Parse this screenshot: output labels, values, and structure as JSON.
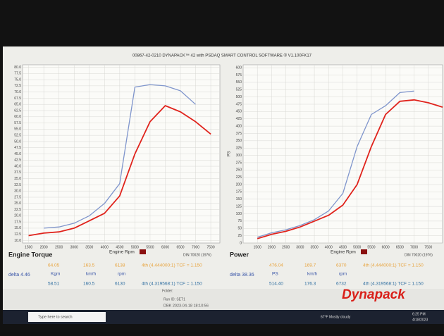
{
  "window_title": "00867-42-0210 DYNAPACK™ 42 with PSDAQ SMART CONTROL SOFTWARE ® V1.100FK17",
  "chart_data": [
    {
      "type": "line",
      "title": "Engine Torque",
      "xlabel": "Engine Rpm",
      "note": "DIN 70020 (1976)",
      "x": [
        1500,
        2000,
        2500,
        3000,
        3500,
        4000,
        4500,
        5000,
        5500,
        6000,
        6500,
        7000,
        7500
      ],
      "series": [
        {
          "color": "#7f95cc",
          "values": [
            null,
            15,
            15.5,
            17,
            20,
            25,
            33,
            72,
            73,
            72.5,
            70.5,
            65,
            null
          ]
        },
        {
          "color": "#e0231c",
          "values": [
            12,
            13,
            13.5,
            15,
            18,
            21,
            28,
            45,
            58,
            64.5,
            62,
            58,
            53
          ]
        }
      ],
      "xlim": [
        1300,
        7800
      ],
      "xticks": [
        1500,
        2000,
        2500,
        3000,
        3500,
        4000,
        4500,
        5000,
        5500,
        6000,
        6500,
        7000,
        7500
      ],
      "ylim": [
        9,
        81
      ],
      "yticks": [
        {
          "value": 10,
          "label": "10.0"
        },
        {
          "value": 12.5,
          "label": "12.5"
        },
        {
          "value": 15,
          "label": "15.0"
        },
        {
          "value": 17.5,
          "label": "17.5"
        },
        {
          "value": 20,
          "label": "20.0"
        },
        {
          "value": 22.5,
          "label": "22.5"
        },
        {
          "value": 25,
          "label": "25.0"
        },
        {
          "value": 27.5,
          "label": "27.5"
        },
        {
          "value": 30,
          "label": "30.0"
        },
        {
          "value": 32.5,
          "label": "32.5"
        },
        {
          "value": 35,
          "label": "35.0"
        },
        {
          "value": 37.5,
          "label": "37.5"
        },
        {
          "value": 40,
          "label": "40.0"
        },
        {
          "value": 42.5,
          "label": "42.5"
        },
        {
          "value": 45,
          "label": "45.0"
        },
        {
          "value": 47.5,
          "label": "47.5"
        },
        {
          "value": 50,
          "label": "50.0"
        },
        {
          "value": 52.5,
          "label": "52.5"
        },
        {
          "value": 55,
          "label": "55.0"
        },
        {
          "value": 57.5,
          "label": "57.5"
        },
        {
          "value": 60,
          "label": "60.0"
        },
        {
          "value": 62.5,
          "label": "62.5"
        },
        {
          "value": 65,
          "label": "65.0"
        },
        {
          "value": 67.5,
          "label": "67.5"
        },
        {
          "value": 70,
          "label": "70.0"
        },
        {
          "value": 72.5,
          "label": "72.5"
        },
        {
          "value": 75,
          "label": "75.0"
        },
        {
          "value": 77.5,
          "label": "77.5"
        },
        {
          "value": 80,
          "label": "80.0"
        }
      ],
      "grid": true,
      "delta": "delta 4.46",
      "units": [
        "Kgm",
        "km/h",
        "rpm"
      ],
      "run1": [
        "64.05",
        "163.5",
        "6138",
        "4th (4.444000:1) TCF = 1.150"
      ],
      "run2": [
        "58.51",
        "160.5",
        "6130",
        "4th (4.319568:1) TCF = 1.150"
      ]
    },
    {
      "type": "line",
      "title": "Power",
      "xlabel": "Engine Rpm",
      "ylabel": "PS",
      "note": "DIN 70020 (1976)",
      "x": [
        1000,
        1500,
        2000,
        2500,
        3000,
        3500,
        4000,
        4500,
        5000,
        5500,
        6000,
        6500,
        7000,
        7500,
        8000
      ],
      "series": [
        {
          "color": "#7f95cc",
          "values": [
            null,
            20,
            35,
            45,
            60,
            80,
            110,
            170,
            330,
            440,
            470,
            515,
            520,
            null,
            null
          ]
        },
        {
          "color": "#e0231c",
          "values": [
            null,
            15,
            30,
            40,
            55,
            75,
            95,
            130,
            200,
            330,
            440,
            485,
            490,
            480,
            465
          ]
        }
      ],
      "xlim": [
        1000,
        8000
      ],
      "xticks": [
        1500,
        2000,
        2500,
        3000,
        3500,
        4000,
        4500,
        5000,
        5500,
        6000,
        6500,
        7000,
        7500
      ],
      "ylim": [
        0,
        610
      ],
      "yticks": [
        0,
        25,
        50,
        75,
        100,
        125,
        150,
        175,
        200,
        225,
        250,
        275,
        300,
        325,
        350,
        375,
        400,
        425,
        450,
        475,
        500,
        525,
        550,
        575,
        600
      ],
      "grid": true,
      "delta": "delta 38.36",
      "units": [
        "PS",
        "km/h",
        "rpm"
      ],
      "run1": [
        "476.04",
        "169.7",
        "6370",
        "4th (4.444000:1) TCF = 1.150"
      ],
      "run2": [
        "514.40",
        "176.3",
        "6732",
        "4th (4.319568:1) TCF = 1.150"
      ]
    }
  ],
  "footer": {
    "folder": "Folder:",
    "run_id": "Run ID: SET1",
    "stamp": "DBK 2023-04-18 18:10:56",
    "brand": "Dynapack"
  },
  "taskbar": {
    "search": "Type here to search",
    "weather": "67°F Mostly cloudy",
    "time": "6:25 PM",
    "date": "4/18/2023"
  }
}
